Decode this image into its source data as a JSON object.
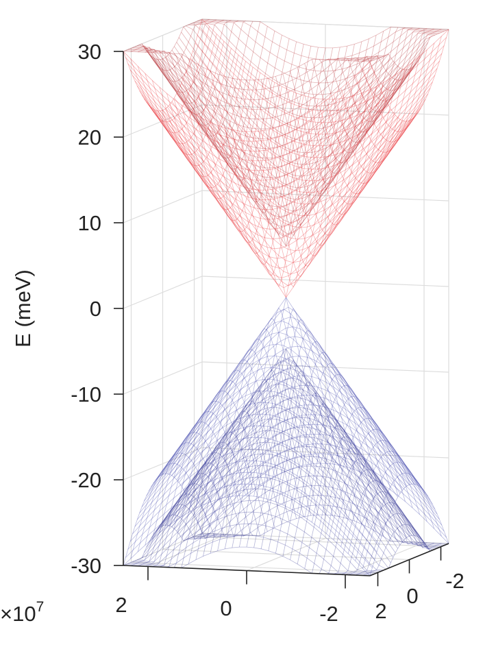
{
  "chart_data": {
    "type": "surface",
    "zlabel": "E (meV)",
    "xlabel": "",
    "ylabel": "",
    "x_multiplier": "×10",
    "x_multiplier_exp": "7",
    "xlim": [
      -2.5,
      2.5
    ],
    "ylim": [
      -2.5,
      2.5
    ],
    "zlim": [
      -30,
      30
    ],
    "z_ticks": [
      "30",
      "20",
      "10",
      "0",
      "-10",
      "-20",
      "-30"
    ],
    "x_ticks": [
      "2",
      "0",
      "-2"
    ],
    "y_ticks": [
      "2",
      "0",
      "-2"
    ],
    "grid": true,
    "bands": [
      {
        "kind": "conduction",
        "apex_meV": 6,
        "slope_meV_per_1e7": 8.5,
        "color": "#b3262b"
      },
      {
        "kind": "conduction",
        "apex_meV": 0,
        "slope_meV_per_1e7": 8.5,
        "color": "#e8262b"
      },
      {
        "kind": "valence",
        "apex_meV": 0,
        "slope_meV_per_1e7": -8.5,
        "color": "#3a3fa8"
      },
      {
        "kind": "valence",
        "apex_meV": -6,
        "slope_meV_per_1e7": -8.5,
        "color": "#2b2f8f"
      }
    ]
  }
}
